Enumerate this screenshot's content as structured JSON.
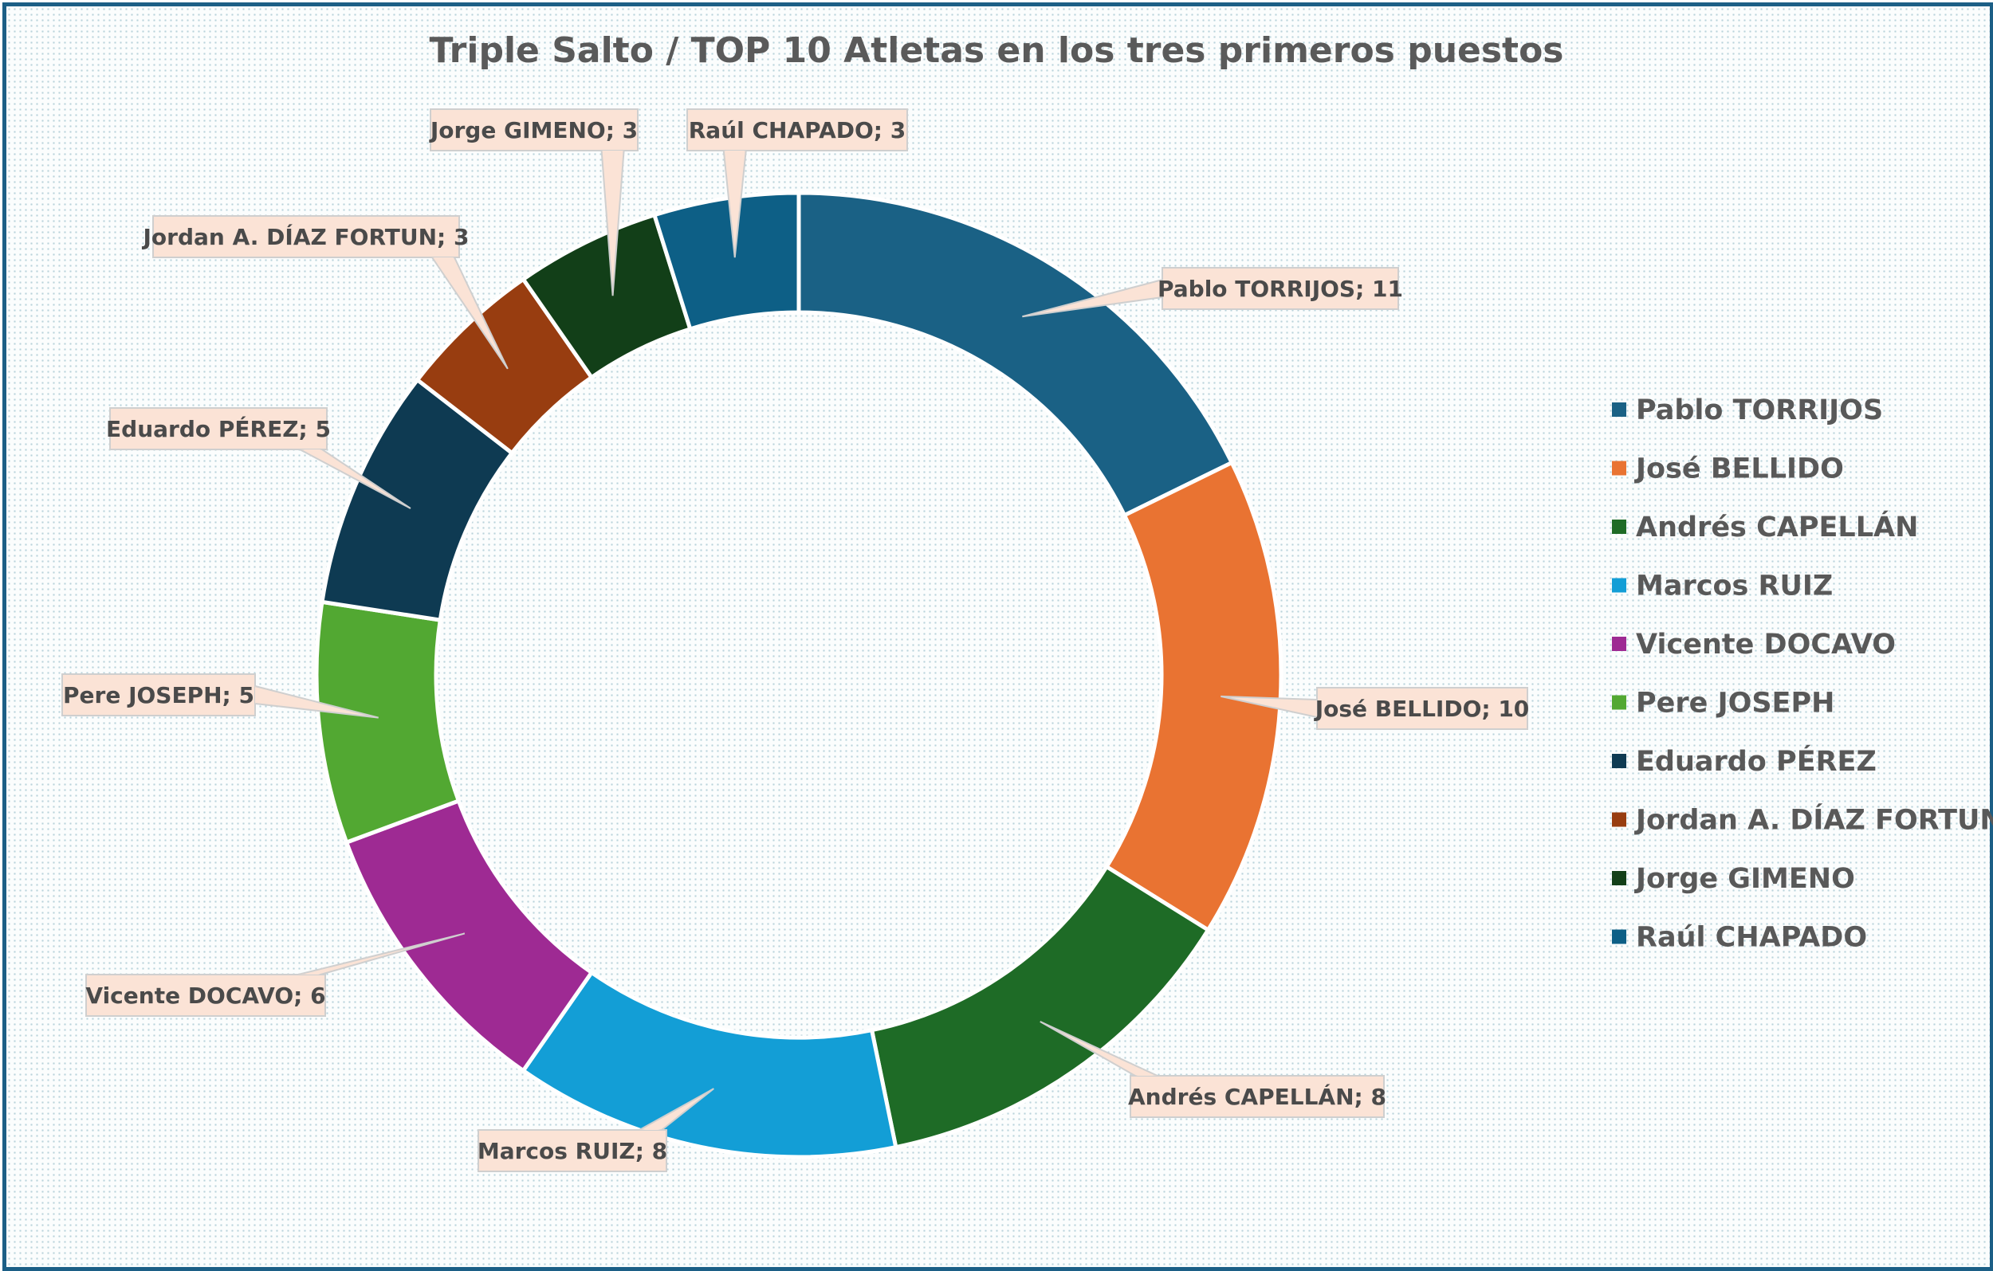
{
  "chart_data": {
    "type": "pie",
    "variant": "doughnut",
    "title": "Triple Salto / TOP 10 Atletas en los tres primeros puestos",
    "legend_position": "right",
    "label_format": "{name}; {value}",
    "categories": [
      "Pablo TORRIJOS",
      "José BELLIDO",
      "Andrés CAPELLÁN",
      "Marcos RUIZ",
      "Vicente DOCAVO",
      "Pere JOSEPH",
      "Eduardo PÉREZ",
      "Jordan A. DÍAZ FORTUN",
      "Jorge GIMENO",
      "Raúl CHAPADO"
    ],
    "values": [
      11,
      10,
      8,
      8,
      6,
      5,
      5,
      3,
      3,
      3
    ],
    "colors": [
      "#1a6185",
      "#e97332",
      "#1e6b26",
      "#139ed6",
      "#9e2a93",
      "#52a832",
      "#0e3a52",
      "#983d10",
      "#123f18",
      "#0d5f86"
    ],
    "data_labels": [
      "Pablo TORRIJOS; 11",
      "José BELLIDO; 10",
      "Andrés CAPELLÁN; 8",
      "Marcos RUIZ; 8",
      "Vicente DOCAVO; 6",
      "Pere JOSEPH; 5",
      "Eduardo PÉREZ; 5",
      "Jordan A. DÍAZ FORTUN; 3",
      "Jorge GIMENO; 3",
      "Raúl CHAPADO; 3"
    ]
  },
  "colors": {
    "frame_border": "#1c5f86",
    "callout_fill": "#fbe3d6",
    "callout_border": "#cfcfcf",
    "title": "#5a5a5a",
    "legend_text": "#595959"
  }
}
